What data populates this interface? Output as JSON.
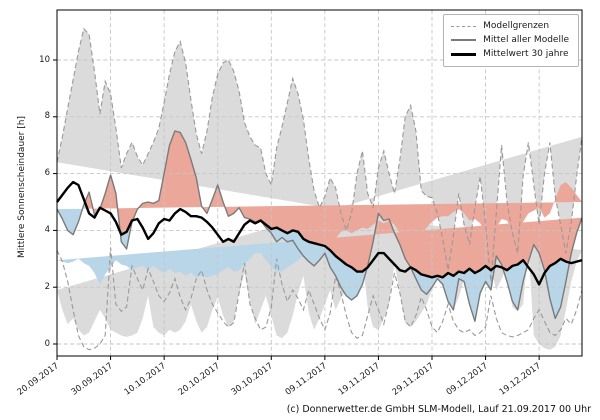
{
  "figure": {
    "y_axis_label": "Mittlere Sonnenscheindauer [h]",
    "caption": "(c) Donnerwetter.de GmbH SLM-Modell, Lauf 21.09.2017 00 Uhr",
    "legend": {
      "items": [
        {
          "label": "Modellgrenzen",
          "line": "dashed-thin-gray"
        },
        {
          "label": "Mittel aller Modelle",
          "line": "solid-gray"
        },
        {
          "label": "Mittelwert 30 jahre",
          "line": "solid-black-thick"
        }
      ]
    },
    "colors": {
      "band_fill": "#dbdbdb",
      "band_edge": "#999999",
      "above_climatology_fill": "#eca79b",
      "below_climatology_fill": "#b9d6e8",
      "model_mean_line": "#7a7a7a",
      "climatology_line": "#000000",
      "grid": "#c6c6c6",
      "spine": "#000000"
    }
  },
  "chart_data": {
    "type": "line",
    "title": "",
    "xlabel": "",
    "ylabel": "Mittlere Sonnenscheindauer [h]",
    "ylim": [
      -0.45,
      11.8
    ],
    "y_ticks": [
      "0",
      "2",
      "4",
      "6",
      "8",
      "10"
    ],
    "y_tick_values": [
      0,
      2,
      4,
      6,
      8,
      10
    ],
    "x_tick_labels": [
      "20.09.2017",
      "30.09.2017",
      "10.10.2017",
      "20.10.2017",
      "30.10.2017",
      "09.11.2017",
      "19.11.2017",
      "29.11.2017",
      "09.12.2017",
      "19.12.2017"
    ],
    "x_tick_day_index": [
      0,
      10,
      20,
      30,
      40,
      50,
      60,
      70,
      80,
      90
    ],
    "x_start_date": "20.09.2017",
    "x_step": "1 day",
    "n_points": 99,
    "grid": true,
    "legend_position": "upper right",
    "series": [
      {
        "name": "Modellgrenzen (obere Grenze)",
        "style": "dashed gray",
        "values": [
          6.4,
          7.3,
          8.3,
          9.3,
          10.3,
          11.1,
          10.9,
          9.6,
          8.1,
          9.25,
          8.8,
          7.6,
          6.2,
          6.7,
          7.1,
          6.6,
          6.3,
          6.7,
          7.1,
          7.6,
          8.5,
          9.5,
          10.3,
          10.65,
          9.9,
          8.6,
          7.4,
          6.7,
          7.5,
          8.7,
          9.5,
          9.9,
          10.0,
          9.6,
          8.9,
          7.8,
          7.3,
          7.0,
          6.9,
          6.0,
          5.6,
          6.9,
          7.65,
          8.5,
          9.35,
          8.8,
          7.9,
          6.5,
          5.4,
          4.8,
          5.2,
          5.85,
          5.5,
          4.6,
          4.0,
          4.6,
          6.0,
          6.8,
          5.3,
          4.8,
          6.2,
          6.8,
          6.0,
          5.3,
          6.5,
          8.0,
          8.4,
          7.5,
          5.4,
          5.2,
          5.15,
          4.6,
          3.7,
          2.6,
          3.8,
          5.3,
          4.2,
          3.5,
          4.8,
          5.9,
          4.2,
          2.2,
          4.6,
          7.0,
          5.0,
          3.9,
          3.2,
          5.9,
          7.1,
          5.6,
          4.2,
          6.0,
          7.1,
          5.2,
          4.2,
          3.2,
          4.3,
          5.9,
          7.3
        ]
      },
      {
        "name": "Modellgrenzen (untere Grenze)",
        "style": "dashed gray",
        "values": [
          3.3,
          2.9,
          2.2,
          1.2,
          0.3,
          -0.1,
          -0.2,
          -0.15,
          0.0,
          0.3,
          3.4,
          1.4,
          1.15,
          1.3,
          2.75,
          2.3,
          1.9,
          2.65,
          2.2,
          1.7,
          1.5,
          1.8,
          2.3,
          1.65,
          1.2,
          1.6,
          2.3,
          2.6,
          1.9,
          1.4,
          1.1,
          0.8,
          0.6,
          0.75,
          1.8,
          2.85,
          1.4,
          0.9,
          0.5,
          0.6,
          1.3,
          3.0,
          2.1,
          1.5,
          1.9,
          1.6,
          1.2,
          1.9,
          1.4,
          0.9,
          0.5,
          1.1,
          2.4,
          1.8,
          1.0,
          0.4,
          0.2,
          0.3,
          1.0,
          1.7,
          1.2,
          0.7,
          1.5,
          2.5,
          1.8,
          0.8,
          0.6,
          1.0,
          1.65,
          1.2,
          0.6,
          0.4,
          0.8,
          1.4,
          0.8,
          0.5,
          0.4,
          0.5,
          0.3,
          0.4,
          0.6,
          1.7,
          0.9,
          0.4,
          0.3,
          0.25,
          0.3,
          0.4,
          0.5,
          0.9,
          1.2,
          0.8,
          0.4,
          0.3,
          0.5,
          0.9,
          0.7,
          1.2,
          1.9
        ]
      },
      {
        "name": "Mittel aller Modelle",
        "style": "solid gray",
        "values": [
          4.75,
          4.4,
          4.0,
          3.85,
          4.3,
          4.9,
          5.35,
          4.55,
          4.75,
          5.3,
          5.95,
          5.3,
          3.6,
          3.35,
          4.3,
          4.75,
          4.95,
          5.0,
          4.95,
          5.05,
          6.0,
          7.0,
          7.5,
          7.45,
          7.1,
          6.5,
          5.85,
          4.85,
          4.6,
          5.1,
          5.6,
          5.0,
          4.5,
          4.6,
          4.8,
          4.45,
          4.4,
          4.3,
          4.35,
          4.1,
          3.9,
          3.6,
          3.75,
          3.6,
          3.65,
          3.35,
          3.1,
          2.9,
          2.75,
          2.95,
          3.2,
          2.7,
          2.4,
          2.0,
          1.7,
          1.55,
          1.7,
          2.1,
          2.75,
          3.6,
          4.6,
          4.35,
          4.4,
          3.9,
          3.5,
          3.0,
          2.7,
          2.3,
          1.9,
          1.75,
          2.0,
          2.3,
          2.1,
          1.5,
          1.2,
          2.3,
          2.2,
          1.4,
          0.8,
          1.8,
          2.2,
          1.9,
          3.1,
          2.8,
          2.2,
          1.5,
          1.2,
          2.2,
          2.9,
          3.5,
          3.2,
          2.6,
          1.6,
          0.9,
          1.3,
          2.2,
          3.2,
          3.9,
          4.45
        ]
      },
      {
        "name": "Mittelwert 30 jahre",
        "style": "solid black thick",
        "values": [
          5.0,
          5.25,
          5.5,
          5.7,
          5.6,
          5.1,
          4.6,
          4.45,
          4.8,
          4.7,
          4.6,
          4.3,
          3.85,
          3.95,
          4.35,
          4.4,
          4.1,
          3.7,
          3.9,
          4.25,
          4.4,
          4.35,
          4.6,
          4.75,
          4.65,
          4.5,
          4.5,
          4.45,
          4.3,
          4.1,
          3.85,
          3.6,
          3.7,
          3.6,
          3.9,
          4.2,
          4.35,
          4.25,
          4.35,
          4.2,
          4.05,
          4.1,
          4.0,
          3.9,
          4.0,
          3.95,
          3.7,
          3.6,
          3.55,
          3.5,
          3.45,
          3.3,
          3.1,
          2.95,
          2.8,
          2.7,
          2.55,
          2.55,
          2.7,
          2.95,
          3.2,
          3.2,
          3.0,
          2.8,
          2.6,
          2.55,
          2.7,
          2.6,
          2.45,
          2.4,
          2.35,
          2.4,
          2.35,
          2.5,
          2.4,
          2.55,
          2.5,
          2.65,
          2.5,
          2.6,
          2.75,
          2.6,
          2.75,
          2.7,
          2.6,
          2.75,
          2.8,
          2.95,
          2.7,
          2.45,
          2.1,
          2.5,
          2.75,
          2.85,
          3.0,
          2.9,
          2.85,
          2.9,
          2.95
        ]
      }
    ],
    "shading": {
      "model_range_band": "#dbdbdb",
      "model_above_climatology": "#eca79b",
      "model_below_climatology": "#b9d6e8"
    }
  }
}
